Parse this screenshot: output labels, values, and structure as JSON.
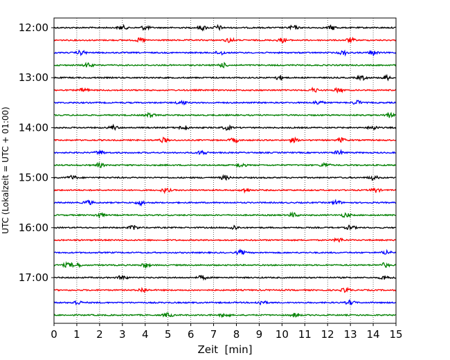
{
  "chart_data": {
    "type": "line",
    "title": "",
    "xlabel": "Zeit  [min]",
    "ylabel": "UTC (Lokalzeit = UTC + 01:00)",
    "xlim": [
      0,
      15
    ],
    "x_ticks": [
      0,
      1,
      2,
      3,
      4,
      5,
      6,
      7,
      8,
      9,
      10,
      11,
      12,
      13,
      14,
      15
    ],
    "x_tick_labels": [
      "0",
      "1",
      "2",
      "3",
      "4",
      "5",
      "6",
      "7",
      "8",
      "9",
      "10",
      "11",
      "12",
      "13",
      "14",
      "15"
    ],
    "y_tick_labels": [
      "12:00",
      "13:00",
      "14:00",
      "15:00",
      "16:00",
      "17:00"
    ],
    "trace_interval_minutes": 15,
    "start_time": "12:00",
    "grid": "vertical dotted",
    "trace_colors": [
      "#000000",
      "#ff0000",
      "#0000ff",
      "#008000"
    ],
    "series": [
      {
        "start": "12:00",
        "color": "#000000",
        "events_min": [
          3.0,
          4.0,
          6.5,
          7.2,
          10.5,
          12.2
        ]
      },
      {
        "start": "12:15",
        "color": "#ff0000",
        "events_min": [
          3.8,
          7.7,
          10.0,
          13.0
        ]
      },
      {
        "start": "12:30",
        "color": "#0000ff",
        "events_min": [
          1.2,
          7.3,
          12.7,
          14.0
        ]
      },
      {
        "start": "12:45",
        "color": "#008000",
        "events_min": [
          1.5,
          7.4
        ]
      },
      {
        "start": "13:00",
        "color": "#000000",
        "events_min": [
          9.9,
          13.5,
          14.6
        ]
      },
      {
        "start": "13:15",
        "color": "#ff0000",
        "events_min": [
          1.3,
          11.4,
          12.5
        ]
      },
      {
        "start": "13:30",
        "color": "#0000ff",
        "events_min": [
          5.6,
          11.6,
          13.3
        ]
      },
      {
        "start": "13:45",
        "color": "#008000",
        "events_min": [
          4.2,
          14.7
        ]
      },
      {
        "start": "14:00",
        "color": "#000000",
        "events_min": [
          2.6,
          5.7,
          7.6,
          14.0
        ]
      },
      {
        "start": "14:15",
        "color": "#ff0000",
        "events_min": [
          4.8,
          7.9,
          10.5,
          12.6
        ]
      },
      {
        "start": "14:30",
        "color": "#0000ff",
        "events_min": [
          2.0,
          6.5,
          12.5
        ]
      },
      {
        "start": "14:45",
        "color": "#008000",
        "events_min": [
          2.0,
          8.2,
          11.9
        ]
      },
      {
        "start": "15:00",
        "color": "#000000",
        "events_min": [
          0.8,
          7.5,
          14.0
        ]
      },
      {
        "start": "15:15",
        "color": "#ff0000",
        "events_min": [
          4.9,
          8.4,
          14.1
        ]
      },
      {
        "start": "15:30",
        "color": "#0000ff",
        "events_min": [
          1.5,
          3.8,
          12.4
        ]
      },
      {
        "start": "15:45",
        "color": "#008000",
        "events_min": [
          2.0,
          10.5,
          12.8
        ]
      },
      {
        "start": "16:00",
        "color": "#000000",
        "events_min": [
          3.5,
          7.9,
          13.0
        ]
      },
      {
        "start": "16:15",
        "color": "#ff0000",
        "events_min": [
          12.5
        ]
      },
      {
        "start": "16:30",
        "color": "#0000ff",
        "events_min": [
          8.2,
          14.6
        ]
      },
      {
        "start": "16:45",
        "color": "#008000",
        "events_min": [
          0.6,
          1.0,
          4.0,
          14.5
        ]
      },
      {
        "start": "17:00",
        "color": "#000000",
        "events_min": [
          3.0,
          6.5,
          14.5
        ]
      },
      {
        "start": "17:15",
        "color": "#ff0000",
        "events_min": [
          3.9,
          12.8
        ]
      },
      {
        "start": "17:30",
        "color": "#0000ff",
        "events_min": [
          1.0,
          9.1,
          13.0
        ]
      },
      {
        "start": "17:45",
        "color": "#008000",
        "events_min": [
          5.0,
          7.5,
          10.6
        ]
      }
    ]
  }
}
